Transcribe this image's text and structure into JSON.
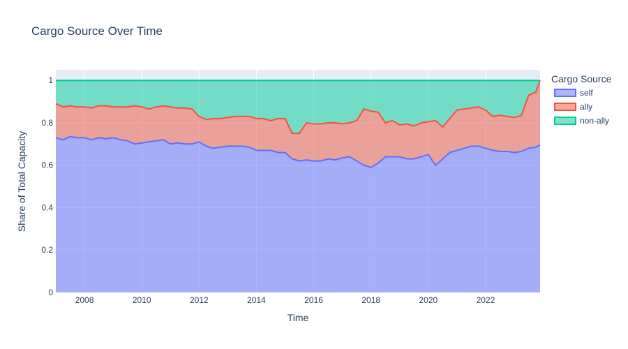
{
  "chart_data": {
    "type": "area",
    "stacked": true,
    "title": "Cargo Source Over Time",
    "xlabel": "Time",
    "ylabel": "Share of Total Capacity",
    "xlim": [
      2007.0,
      2023.9
    ],
    "ylim": [
      0,
      1.05
    ],
    "x_ticks": [
      2008,
      2010,
      2012,
      2014,
      2016,
      2018,
      2020,
      2022
    ],
    "y_ticks": [
      0,
      0.2,
      0.4,
      0.6,
      0.8,
      1
    ],
    "grid": true,
    "legend_position": "top-right",
    "legend_title": "Cargo Source",
    "x": [
      2007.0,
      2007.25,
      2007.5,
      2007.75,
      2008.0,
      2008.25,
      2008.5,
      2008.75,
      2009.0,
      2009.25,
      2009.5,
      2009.75,
      2010.0,
      2010.25,
      2010.5,
      2010.75,
      2011.0,
      2011.25,
      2011.5,
      2011.75,
      2012.0,
      2012.25,
      2012.5,
      2012.75,
      2013.0,
      2013.25,
      2013.5,
      2013.75,
      2014.0,
      2014.25,
      2014.5,
      2014.75,
      2015.0,
      2015.25,
      2015.5,
      2015.75,
      2016.0,
      2016.25,
      2016.5,
      2016.75,
      2017.0,
      2017.25,
      2017.5,
      2017.75,
      2018.0,
      2018.25,
      2018.5,
      2018.75,
      2019.0,
      2019.25,
      2019.5,
      2019.75,
      2020.0,
      2020.25,
      2020.5,
      2020.75,
      2021.0,
      2021.25,
      2021.5,
      2021.75,
      2022.0,
      2022.25,
      2022.5,
      2022.75,
      2023.0,
      2023.25,
      2023.5,
      2023.75,
      2023.9
    ],
    "series": [
      {
        "name": "self",
        "color": "#636efa",
        "values": [
          0.73,
          0.72,
          0.735,
          0.73,
          0.73,
          0.72,
          0.73,
          0.725,
          0.73,
          0.72,
          0.715,
          0.7,
          0.705,
          0.71,
          0.715,
          0.72,
          0.7,
          0.705,
          0.7,
          0.7,
          0.71,
          0.69,
          0.68,
          0.685,
          0.69,
          0.69,
          0.69,
          0.685,
          0.67,
          0.67,
          0.67,
          0.66,
          0.66,
          0.63,
          0.62,
          0.625,
          0.62,
          0.62,
          0.63,
          0.625,
          0.635,
          0.64,
          0.62,
          0.6,
          0.59,
          0.61,
          0.64,
          0.64,
          0.64,
          0.63,
          0.63,
          0.64,
          0.65,
          0.6,
          0.63,
          0.66,
          0.67,
          0.68,
          0.69,
          0.69,
          0.68,
          0.67,
          0.665,
          0.665,
          0.66,
          0.665,
          0.68,
          0.685,
          0.695
        ]
      },
      {
        "name": "ally",
        "color": "#ef553b",
        "values": [
          0.16,
          0.155,
          0.145,
          0.145,
          0.145,
          0.15,
          0.15,
          0.155,
          0.145,
          0.155,
          0.16,
          0.18,
          0.17,
          0.155,
          0.16,
          0.16,
          0.175,
          0.165,
          0.17,
          0.165,
          0.12,
          0.125,
          0.14,
          0.135,
          0.135,
          0.14,
          0.14,
          0.145,
          0.15,
          0.15,
          0.14,
          0.16,
          0.16,
          0.12,
          0.13,
          0.175,
          0.175,
          0.175,
          0.17,
          0.175,
          0.16,
          0.16,
          0.19,
          0.265,
          0.265,
          0.24,
          0.16,
          0.17,
          0.15,
          0.165,
          0.155,
          0.16,
          0.155,
          0.21,
          0.15,
          0.16,
          0.19,
          0.185,
          0.18,
          0.185,
          0.18,
          0.16,
          0.17,
          0.165,
          0.165,
          0.17,
          0.25,
          0.26,
          0.305
        ]
      },
      {
        "name": "non-ally",
        "color": "#00cc96",
        "values": [
          0.11,
          0.125,
          0.12,
          0.125,
          0.125,
          0.13,
          0.12,
          0.12,
          0.125,
          0.125,
          0.125,
          0.12,
          0.125,
          0.135,
          0.125,
          0.12,
          0.125,
          0.13,
          0.13,
          0.135,
          0.17,
          0.185,
          0.18,
          0.18,
          0.175,
          0.17,
          0.17,
          0.17,
          0.18,
          0.18,
          0.19,
          0.18,
          0.18,
          0.25,
          0.25,
          0.2,
          0.205,
          0.205,
          0.2,
          0.2,
          0.205,
          0.2,
          0.19,
          0.135,
          0.145,
          0.15,
          0.2,
          0.19,
          0.21,
          0.205,
          0.215,
          0.2,
          0.195,
          0.19,
          0.22,
          0.18,
          0.14,
          0.135,
          0.13,
          0.125,
          0.14,
          0.17,
          0.165,
          0.17,
          0.175,
          0.165,
          0.07,
          0.055,
          0.0
        ]
      }
    ]
  }
}
